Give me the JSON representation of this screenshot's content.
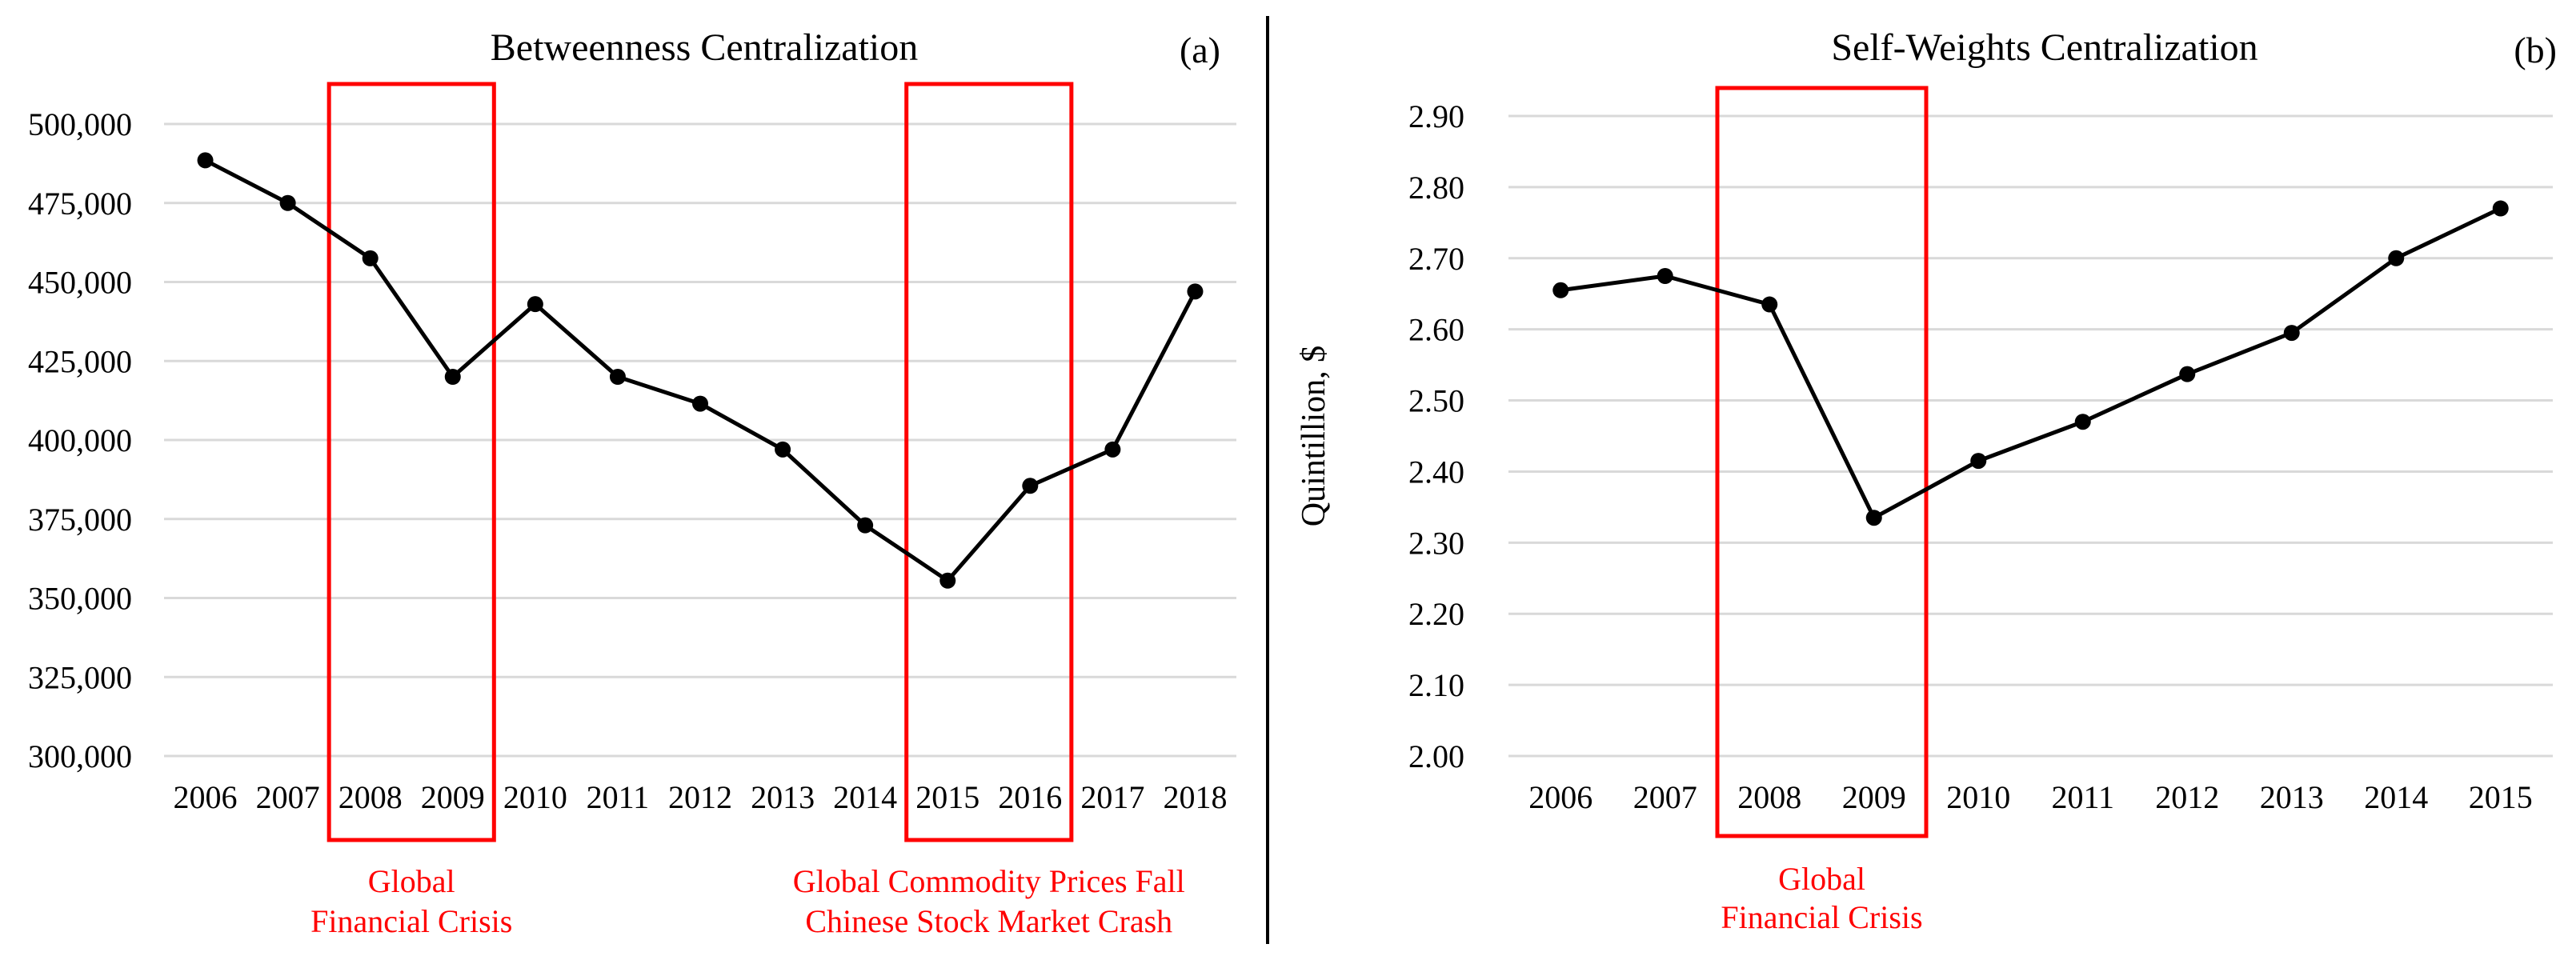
{
  "chart_data": [
    {
      "type": "line",
      "title": "Betweenness Centralization",
      "panel_label": "(a)",
      "xlabel": "",
      "ylabel": "",
      "categories": [
        "2006",
        "2007",
        "2008",
        "2009",
        "2010",
        "2011",
        "2012",
        "2013",
        "2014",
        "2015",
        "2016",
        "2017",
        "2018"
      ],
      "series": [
        {
          "name": "Betweenness Centralization",
          "values": [
            488500,
            475000,
            457500,
            420000,
            443000,
            420000,
            411500,
            397000,
            373000,
            355500,
            385500,
            397000,
            447000
          ]
        }
      ],
      "ylim": [
        300000,
        500000
      ],
      "yticks": [
        300000,
        325000,
        350000,
        375000,
        400000,
        425000,
        450000,
        475000,
        500000
      ],
      "ytick_labels": [
        "300,000",
        "325,000",
        "350,000",
        "375,000",
        "400,000",
        "425,000",
        "450,000",
        "475,000",
        "500,000"
      ],
      "grid": true,
      "highlights": [
        {
          "from": "2008",
          "to": "2009",
          "lines": [
            "Global",
            "Financial Crisis"
          ]
        },
        {
          "from": "2015",
          "to": "2016",
          "lines": [
            "Global Commodity Prices Fall",
            "Chinese Stock Market Crash"
          ]
        }
      ]
    },
    {
      "type": "line",
      "title": "Self-Weights Centralization",
      "panel_label": "(b)",
      "xlabel": "",
      "ylabel": "Quintillion, $",
      "categories": [
        "2006",
        "2007",
        "2008",
        "2009",
        "2010",
        "2011",
        "2012",
        "2013",
        "2014",
        "2015"
      ],
      "series": [
        {
          "name": "Self-Weights Centralization",
          "values": [
            2.655,
            2.675,
            2.635,
            2.335,
            2.415,
            2.47,
            2.537,
            2.595,
            2.7,
            2.77
          ]
        }
      ],
      "ylim": [
        2.0,
        2.9
      ],
      "yticks": [
        2.0,
        2.1,
        2.2,
        2.3,
        2.4,
        2.5,
        2.6,
        2.7,
        2.8,
        2.9
      ],
      "ytick_labels": [
        "2.00",
        "2.10",
        "2.20",
        "2.30",
        "2.40",
        "2.50",
        "2.60",
        "2.70",
        "2.80",
        "2.90"
      ],
      "grid": true,
      "highlights": [
        {
          "from": "2008",
          "to": "2009",
          "lines": [
            "Global",
            "Financial Crisis"
          ]
        }
      ]
    }
  ]
}
